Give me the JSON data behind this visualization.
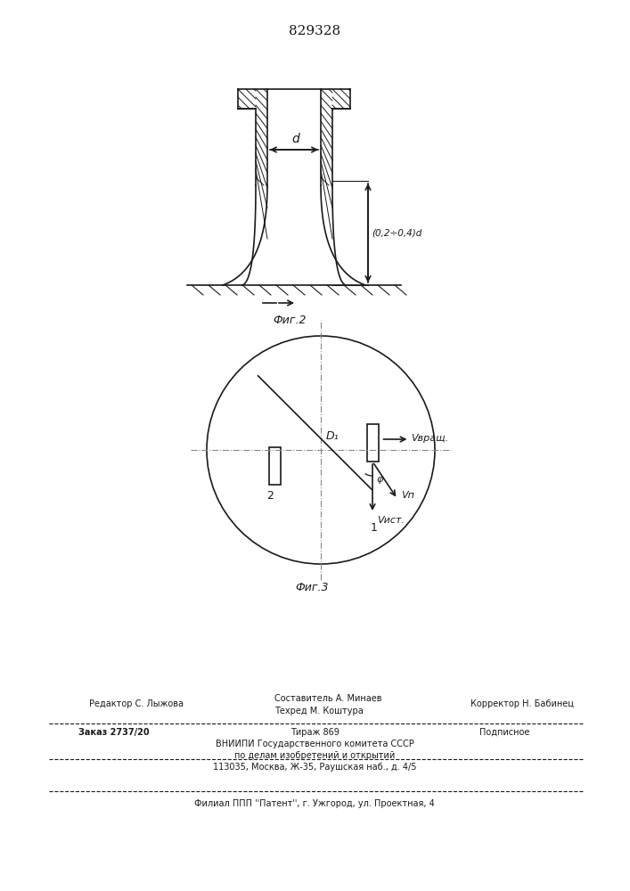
{
  "patent_number": "829328",
  "fig2_label": "Фиг.2",
  "fig3_label": "Фиг.3",
  "dim_label_d": "d",
  "dim_label_h": "(0,2÷0,4)d",
  "v_vrash": "Vвращ.",
  "v_n": "Vп",
  "v_ist": "Vист.",
  "phi_label": "φ",
  "num_label_1": "1",
  "num_label_2": "2",
  "d1_label": "D₁",
  "footer_line1": "Составитель А. Минаев",
  "footer_line2": "Техред М. Коштура",
  "footer_editor": "Редактор С. Лыжова",
  "footer_corrector": "Корректор Н. Бабинец",
  "footer_order": "Заказ 2737/20",
  "footer_tirazh": "Тираж 869",
  "footer_podpisnoe": "Подписное",
  "footer_vniip1": "ВНИИПИ Государственного комитета СССР",
  "footer_vniip2": "по делам изобретений и открытий",
  "footer_addr": "113035, Москва, Ж-35, Раушская наб., д. 4/5",
  "footer_filial": "Филиал ППП ''Патент'', г. Ужгород, ул. Проектная, 4",
  "line_color": "#1a1a1a"
}
